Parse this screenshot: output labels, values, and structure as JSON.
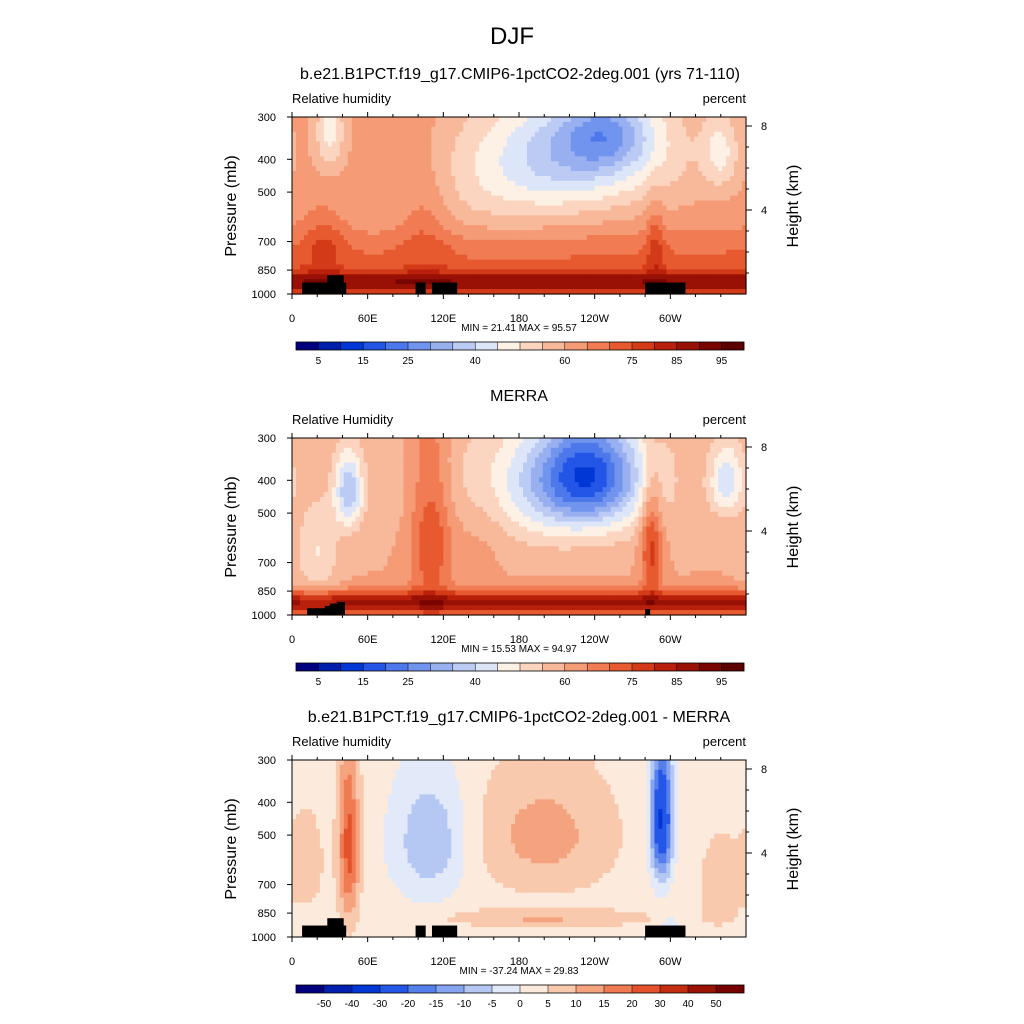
{
  "figure": {
    "title": "DJF"
  },
  "chart_data": [
    {
      "type": "heatmap",
      "title": "b.e21.B1PCT.f19_g17.CMIP6-1pctCO2-2deg.001 (yrs 71-110)",
      "left_label": "Relative humidity",
      "right_label": "percent",
      "ylabel": "Pressure (mb)",
      "ylabel_right": "Height (km)",
      "xticks": [
        "0",
        "60E",
        "120E",
        "180",
        "120W",
        "60W"
      ],
      "yticks": [
        "300",
        "400",
        "500",
        "700",
        "850",
        "1000"
      ],
      "right_ticks": [
        "8",
        "4"
      ],
      "min_max": "MIN =  21.41  MAX =  95.57",
      "field": "model",
      "levels": [
        5,
        10,
        15,
        20,
        25,
        30,
        35,
        40,
        45,
        50,
        55,
        60,
        65,
        70,
        75,
        80,
        85,
        90,
        95
      ],
      "colorbar_labels": [
        "5",
        "15",
        "25",
        "40",
        "60",
        "75",
        "85",
        "95"
      ]
    },
    {
      "type": "heatmap",
      "title": "MERRA",
      "left_label": "Relative Humidity",
      "right_label": "percent",
      "ylabel": "Pressure (mb)",
      "ylabel_right": "Height (km)",
      "xticks": [
        "0",
        "60E",
        "120E",
        "180",
        "120W",
        "60W"
      ],
      "yticks": [
        "300",
        "400",
        "500",
        "700",
        "850",
        "1000"
      ],
      "right_ticks": [
        "8",
        "4"
      ],
      "min_max": "MIN =  15.53  MAX =  94.97",
      "field": "obs",
      "levels": [
        5,
        10,
        15,
        20,
        25,
        30,
        35,
        40,
        45,
        50,
        55,
        60,
        65,
        70,
        75,
        80,
        85,
        90,
        95
      ],
      "colorbar_labels": [
        "5",
        "15",
        "25",
        "40",
        "60",
        "75",
        "85",
        "95"
      ]
    },
    {
      "type": "heatmap",
      "title": "b.e21.B1PCT.f19_g17.CMIP6-1pctCO2-2deg.001 - MERRA",
      "left_label": "Relative humidity",
      "right_label": "percent",
      "ylabel": "Pressure (mb)",
      "ylabel_right": "Height (km)",
      "xticks": [
        "0",
        "60E",
        "120E",
        "180",
        "120W",
        "60W"
      ],
      "yticks": [
        "300",
        "400",
        "500",
        "700",
        "850",
        "1000"
      ],
      "right_ticks": [
        "8",
        "4"
      ],
      "min_max": "MIN = -37.24  MAX =  29.83",
      "field": "diff",
      "levels": [
        -50,
        -40,
        -30,
        -20,
        -15,
        -10,
        -5,
        0,
        5,
        10,
        15,
        20,
        30,
        40,
        50
      ],
      "colorbar_labels": [
        "-50",
        "-40",
        "-30",
        "-20",
        "-15",
        "-10",
        "-5",
        "0",
        "5",
        "10",
        "15",
        "20",
        "30",
        "40",
        "50"
      ]
    }
  ],
  "colors": {
    "abs_palette": [
      "#00007e",
      "#001fab",
      "#0137d4",
      "#2355e6",
      "#4c78eb",
      "#7194ee",
      "#98b0f0",
      "#bccbf4",
      "#dde6f9",
      "#fdf0e4",
      "#fbd5c0",
      "#f8b99b",
      "#f59b76",
      "#f17c53",
      "#e75a30",
      "#d33a17",
      "#b8200b",
      "#991004",
      "#780500",
      "#5c0000"
    ],
    "diff_palette": [
      "#00007e",
      "#0120b0",
      "#0137d4",
      "#2457e7",
      "#5580ec",
      "#86a4ef",
      "#b5c8f3",
      "#e2eaf9",
      "#fcebdc",
      "#f9c9ad",
      "#f5a37f",
      "#f07a52",
      "#e3522a",
      "#c42d10",
      "#9a1203",
      "#760000"
    ],
    "topography": "#000000"
  }
}
